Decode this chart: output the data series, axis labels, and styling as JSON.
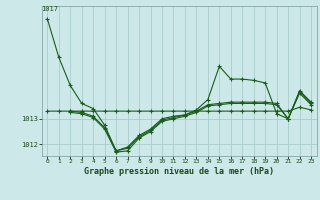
{
  "background_color": "#cce8e8",
  "grid_color": "#aacccc",
  "line_color": "#1a5c1a",
  "title": "Graphe pression niveau de la mer (hPa)",
  "xlim": [
    -0.5,
    23.5
  ],
  "ylim": [
    1011.55,
    1017.4
  ],
  "yticks": [
    1012,
    1013
  ],
  "ytick_labels": [
    "1012",
    "1013"
  ],
  "xticks": [
    0,
    1,
    2,
    3,
    4,
    5,
    6,
    7,
    8,
    9,
    10,
    11,
    12,
    13,
    14,
    15,
    16,
    17,
    18,
    19,
    20,
    21,
    22,
    23
  ],
  "series1_x": [
    0,
    1,
    2,
    3,
    4,
    5,
    6,
    7,
    8,
    9,
    10,
    11,
    12,
    13,
    14,
    15,
    16,
    17,
    18,
    19,
    20,
    21,
    22,
    23
  ],
  "series1_y": [
    1016.9,
    1015.4,
    1014.3,
    1013.6,
    1013.4,
    1012.75,
    1011.75,
    1011.9,
    1012.35,
    1012.6,
    1013.0,
    1013.1,
    1013.15,
    1013.35,
    1013.75,
    1015.05,
    1014.55,
    1014.55,
    1014.5,
    1014.4,
    1013.2,
    1013.0,
    1014.1,
    1013.65
  ],
  "series2_x": [
    0,
    1,
    2,
    3,
    4,
    5,
    6,
    7,
    8,
    9,
    10,
    11,
    12,
    13,
    14,
    15,
    16,
    17,
    18,
    19,
    20,
    21,
    22,
    23
  ],
  "series2_y": [
    1013.3,
    1013.3,
    1013.3,
    1013.3,
    1013.3,
    1013.3,
    1013.3,
    1013.3,
    1013.3,
    1013.3,
    1013.3,
    1013.3,
    1013.3,
    1013.3,
    1013.3,
    1013.3,
    1013.3,
    1013.3,
    1013.3,
    1013.3,
    1013.3,
    1013.3,
    1013.45,
    1013.35
  ],
  "series3_x": [
    2,
    3,
    4,
    5,
    6,
    7,
    8,
    9,
    10,
    11,
    12,
    13,
    14,
    15,
    16,
    17,
    18,
    19,
    20,
    21,
    22,
    23
  ],
  "series3_y": [
    1013.3,
    1013.25,
    1013.1,
    1012.65,
    1011.75,
    1011.85,
    1012.3,
    1012.55,
    1012.95,
    1013.05,
    1013.15,
    1013.3,
    1013.55,
    1013.6,
    1013.65,
    1013.65,
    1013.65,
    1013.65,
    1013.6,
    1013.0,
    1014.05,
    1013.6
  ],
  "series4_x": [
    2,
    3,
    4,
    5,
    6,
    7,
    8,
    9,
    10,
    11,
    12,
    13,
    14,
    15,
    16,
    17,
    18,
    19,
    20,
    21,
    22,
    23
  ],
  "series4_y": [
    1013.25,
    1013.2,
    1013.05,
    1012.6,
    1011.7,
    1011.75,
    1012.25,
    1012.5,
    1012.9,
    1013.0,
    1013.1,
    1013.25,
    1013.5,
    1013.55,
    1013.6,
    1013.6,
    1013.6,
    1013.6,
    1013.55,
    1013.0,
    1014.0,
    1013.55
  ]
}
